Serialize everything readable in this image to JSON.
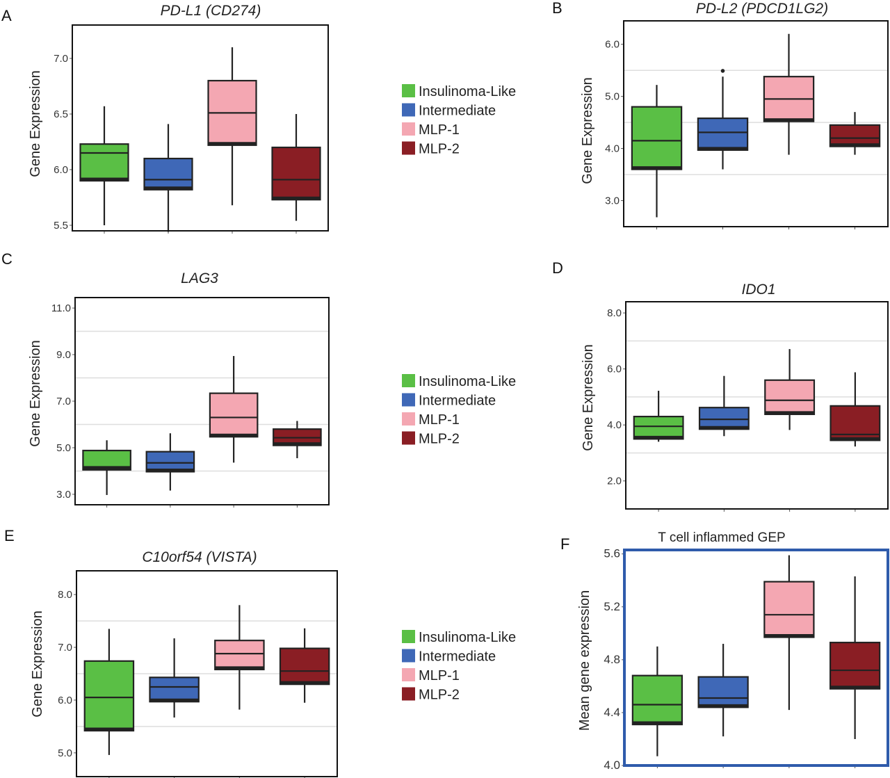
{
  "legend_items": [
    {
      "label": "Insulinoma-Like",
      "color": "#5abf45"
    },
    {
      "label": "Intermediate",
      "color": "#3f68b7"
    },
    {
      "label": "MLP-1",
      "color": "#f4a7b2"
    },
    {
      "label": "MLP-2",
      "color": "#8a1e24"
    }
  ],
  "chart_data": [
    {
      "panel": "A",
      "type": "box",
      "title": "PD-L1 (CD274)",
      "title_italic": true,
      "ylabel": "Gene Expression",
      "ylim": [
        5.45,
        7.3
      ],
      "yticks": [
        5.5,
        6.0,
        6.5,
        7.0
      ],
      "ytick_labels": [
        "5.5",
        "6.0",
        "6.5",
        "7.0"
      ],
      "grid": false,
      "frame_color": "#111111",
      "categories": [
        "Insulinoma-Like",
        "Intermediate",
        "MLP-1",
        "MLP-2"
      ],
      "colors": [
        "#5abf45",
        "#3f68b7",
        "#f4a7b2",
        "#8a1e24"
      ],
      "boxes": [
        {
          "whisker_low": 5.5,
          "q1": 5.9,
          "median": 6.15,
          "q3": 6.23,
          "whisker_high": 6.57
        },
        {
          "whisker_low": 5.44,
          "q1": 5.82,
          "median": 5.91,
          "q3": 6.1,
          "whisker_high": 6.41
        },
        {
          "whisker_low": 5.68,
          "q1": 6.22,
          "median": 6.51,
          "q3": 6.8,
          "whisker_high": 7.1
        },
        {
          "whisker_low": 5.54,
          "q1": 5.73,
          "median": 5.91,
          "q3": 6.2,
          "whisker_high": 6.5
        }
      ]
    },
    {
      "panel": "B",
      "type": "box",
      "title": "PD-L2 (PDCD1LG2)",
      "title_italic": true,
      "ylabel": "Gene Expression",
      "ylim": [
        2.5,
        6.45
      ],
      "yticks": [
        3.0,
        4.0,
        5.0,
        6.0
      ],
      "ytick_labels": [
        "3.0",
        "4.0",
        "5.0",
        "6.0"
      ],
      "grid": true,
      "grid_values": [
        3.5,
        4.5,
        5.5
      ],
      "frame_color": "#111111",
      "categories": [
        "Insulinoma-Like",
        "Intermediate",
        "MLP-1",
        "MLP-2"
      ],
      "colors": [
        "#5abf45",
        "#3f68b7",
        "#f4a7b2",
        "#8a1e24"
      ],
      "boxes": [
        {
          "whisker_low": 2.68,
          "q1": 3.6,
          "median": 4.15,
          "q3": 4.8,
          "whisker_high": 5.22
        },
        {
          "whisker_low": 3.6,
          "q1": 3.97,
          "median": 4.31,
          "q3": 4.58,
          "whisker_high": 5.38,
          "outliers": [
            5.49
          ]
        },
        {
          "whisker_low": 3.88,
          "q1": 4.52,
          "median": 4.95,
          "q3": 5.38,
          "whisker_high": 6.2
        },
        {
          "whisker_low": 3.88,
          "q1": 4.04,
          "median": 4.2,
          "q3": 4.45,
          "whisker_high": 4.7
        }
      ]
    },
    {
      "panel": "C",
      "type": "box",
      "title": "LAG3",
      "title_italic": true,
      "ylabel": "Gene Expression",
      "ylim": [
        2.55,
        11.45
      ],
      "yticks": [
        3.0,
        5.0,
        7.0,
        9.0,
        11.0
      ],
      "ytick_labels": [
        "3.0",
        "5.0",
        "7.0",
        "9.0",
        "11.0"
      ],
      "grid": true,
      "grid_values": [
        4.0,
        6.0,
        8.0,
        10.0
      ],
      "frame_color": "#111111",
      "categories": [
        "Insulinoma-Like",
        "Intermediate",
        "MLP-1",
        "MLP-2"
      ],
      "colors": [
        "#5abf45",
        "#3f68b7",
        "#f4a7b2",
        "#8a1e24"
      ],
      "boxes": [
        {
          "whisker_low": 2.97,
          "q1": 4.05,
          "median": 4.18,
          "q3": 4.88,
          "whisker_high": 5.32
        },
        {
          "whisker_low": 3.16,
          "q1": 3.97,
          "median": 4.35,
          "q3": 4.83,
          "whisker_high": 5.62
        },
        {
          "whisker_low": 4.36,
          "q1": 5.47,
          "median": 6.3,
          "q3": 7.34,
          "whisker_high": 8.94
        },
        {
          "whisker_low": 4.55,
          "q1": 5.1,
          "median": 5.43,
          "q3": 5.8,
          "whisker_high": 6.15
        }
      ]
    },
    {
      "panel": "D",
      "type": "box",
      "title": "IDO1",
      "title_italic": true,
      "ylabel": "Gene Expression",
      "ylim": [
        1.0,
        8.4
      ],
      "yticks": [
        2.0,
        4.0,
        6.0,
        8.0
      ],
      "ytick_labels": [
        "2.0",
        "4.0",
        "6.0",
        "8.0"
      ],
      "grid": true,
      "grid_values": [
        3.0,
        5.0,
        7.0
      ],
      "frame_color": "#111111",
      "categories": [
        "Insulinoma-Like",
        "Intermediate",
        "MLP-1",
        "MLP-2"
      ],
      "colors": [
        "#5abf45",
        "#3f68b7",
        "#f4a7b2",
        "#8a1e24"
      ],
      "boxes": [
        {
          "whisker_low": 3.4,
          "q1": 3.5,
          "median": 3.95,
          "q3": 4.3,
          "whisker_high": 5.22
        },
        {
          "whisker_low": 3.6,
          "q1": 3.85,
          "median": 4.2,
          "q3": 4.62,
          "whisker_high": 5.75
        },
        {
          "whisker_low": 3.82,
          "q1": 4.38,
          "median": 4.88,
          "q3": 5.6,
          "whisker_high": 6.71
        },
        {
          "whisker_low": 3.23,
          "q1": 3.45,
          "median": 3.66,
          "q3": 4.68,
          "whisker_high": 5.88
        }
      ]
    },
    {
      "panel": "E",
      "type": "box",
      "title": "C10orf54 (VISTA)",
      "title_italic": true,
      "ylabel": "Gene Expression",
      "ylim": [
        4.55,
        8.45
      ],
      "yticks": [
        5.0,
        6.0,
        7.0,
        8.0
      ],
      "ytick_labels": [
        "5.0",
        "6.0",
        "7.0",
        "8.0"
      ],
      "grid": true,
      "grid_values": [
        5.5,
        6.5,
        7.5
      ],
      "frame_color": "#111111",
      "categories": [
        "Insulinoma-Like",
        "Intermediate",
        "MLP-1",
        "MLP-2"
      ],
      "colors": [
        "#5abf45",
        "#3f68b7",
        "#f4a7b2",
        "#8a1e24"
      ],
      "boxes": [
        {
          "whisker_low": 4.96,
          "q1": 5.42,
          "median": 6.05,
          "q3": 6.74,
          "whisker_high": 7.35
        },
        {
          "whisker_low": 5.67,
          "q1": 5.97,
          "median": 6.25,
          "q3": 6.43,
          "whisker_high": 7.17
        },
        {
          "whisker_low": 5.82,
          "q1": 6.58,
          "median": 6.88,
          "q3": 7.13,
          "whisker_high": 7.8
        },
        {
          "whisker_low": 5.95,
          "q1": 6.3,
          "median": 6.55,
          "q3": 6.98,
          "whisker_high": 7.36
        }
      ]
    },
    {
      "panel": "F",
      "type": "box",
      "title": "T cell inflammed GEP",
      "title_italic": false,
      "ylabel": "Mean gene expression",
      "ylim": [
        4.0,
        5.63
      ],
      "yticks": [
        4.0,
        4.4,
        4.8,
        5.2,
        5.6
      ],
      "ytick_labels": [
        "4.0",
        "4.4",
        "4.8",
        "5.2",
        "5.6"
      ],
      "grid": false,
      "frame_color": "#2f5bab",
      "categories": [
        "Insulinoma-Like",
        "Intermediate",
        "MLP-1",
        "MLP-2"
      ],
      "colors": [
        "#5abf45",
        "#3f68b7",
        "#f4a7b2",
        "#8a1e24"
      ],
      "boxes": [
        {
          "whisker_low": 4.07,
          "q1": 4.31,
          "median": 4.46,
          "q3": 4.68,
          "whisker_high": 4.9
        },
        {
          "whisker_low": 4.22,
          "q1": 4.44,
          "median": 4.51,
          "q3": 4.67,
          "whisker_high": 4.92
        },
        {
          "whisker_low": 4.42,
          "q1": 4.97,
          "median": 5.14,
          "q3": 5.39,
          "whisker_high": 5.59
        },
        {
          "whisker_low": 4.2,
          "q1": 4.58,
          "median": 4.72,
          "q3": 4.93,
          "whisker_high": 5.43
        }
      ]
    }
  ]
}
